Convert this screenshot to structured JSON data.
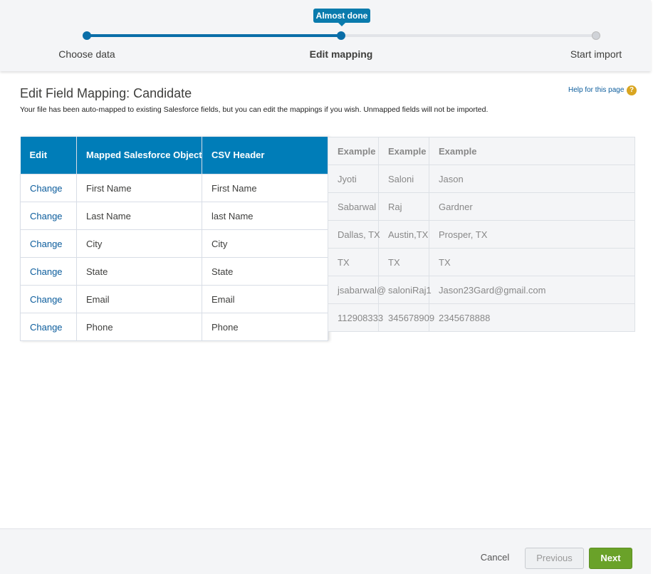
{
  "progress": {
    "badge": "Almost done",
    "steps": [
      "Choose data",
      "Edit mapping",
      "Start import"
    ]
  },
  "header": {
    "title": "Edit Field Mapping: Candidate",
    "description": "Your file has been auto-mapped to existing Salesforce fields, but you can edit the mappings if you wish. Unmapped fields will not be imported.",
    "help": "Help for this page"
  },
  "mapping_table": {
    "headers": [
      "Edit",
      "Mapped Salesforce Object",
      "CSV Header"
    ],
    "rows": [
      [
        "Change",
        "First Name",
        "First Name"
      ],
      [
        "Change",
        "Last Name",
        "last Name"
      ],
      [
        "Change",
        "City",
        "City"
      ],
      [
        "Change",
        "State",
        "State"
      ],
      [
        "Change",
        "Email",
        "Email"
      ],
      [
        "Change",
        "Phone",
        "Phone"
      ]
    ]
  },
  "examples_table": {
    "headers": [
      "Example",
      "Example",
      "Example"
    ],
    "rows": [
      [
        "Jyoti",
        "Saloni",
        "Jason"
      ],
      [
        "Sabarwal",
        "Raj",
        "Gardner"
      ],
      [
        "Dallas, TX",
        "Austin,TX",
        "Prosper, TX"
      ],
      [
        "TX",
        "TX",
        "TX"
      ],
      [
        "jsabarwal@",
        "saloniRaj1",
        "Jason23Gard@gmail.com"
      ],
      [
        "112908333",
        "345678909",
        "2345678888"
      ]
    ]
  },
  "footer": {
    "cancel": "Cancel",
    "previous": "Previous",
    "next": "Next"
  }
}
